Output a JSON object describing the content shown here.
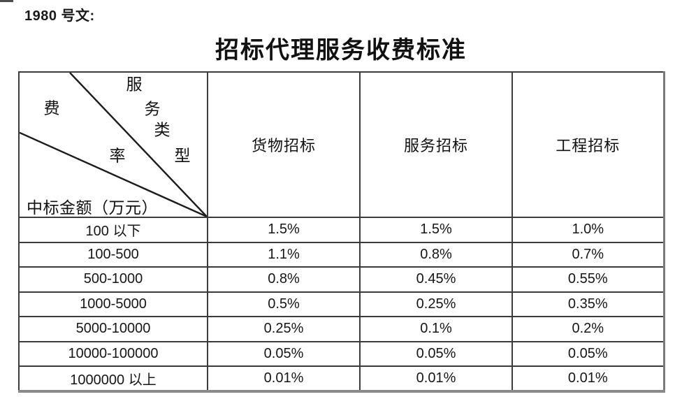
{
  "page": {
    "doc_ref": "1980 号文:",
    "title": "招标代理服务收费标准"
  },
  "table": {
    "corner": {
      "diag_label_chars": [
        "服",
        "务",
        "类",
        "型"
      ],
      "fee_label_chars": [
        "费",
        "率"
      ],
      "row_axis_label": "中标金额（万元）"
    },
    "columns": [
      "货物招标",
      "服务招标",
      "工程招标"
    ],
    "rows": [
      {
        "range": "100 以下",
        "values": [
          "1.5%",
          "1.5%",
          "1.0%"
        ]
      },
      {
        "range": "100-500",
        "values": [
          "1.1%",
          "0.8%",
          "0.7%"
        ]
      },
      {
        "range": "500-1000",
        "values": [
          "0.8%",
          "0.45%",
          "0.55%"
        ]
      },
      {
        "range": "1000-5000",
        "values": [
          "0.5%",
          "0.25%",
          "0.35%"
        ]
      },
      {
        "range": "5000-10000",
        "values": [
          "0.25%",
          "0.1%",
          "0.2%"
        ]
      },
      {
        "range": "10000-100000",
        "values": [
          "0.05%",
          "0.05%",
          "0.05%"
        ]
      },
      {
        "range": "1000000 以上",
        "values": [
          "0.01%",
          "0.01%",
          "0.01%"
        ]
      }
    ],
    "line_color": "#1c1c1c",
    "border_color": "#3b3b3b"
  }
}
